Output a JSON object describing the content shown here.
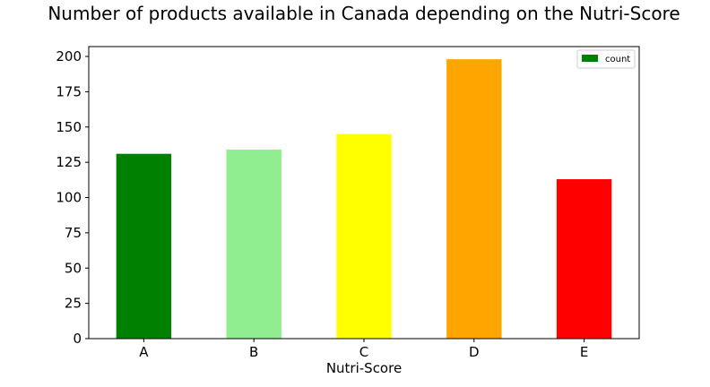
{
  "chart_data": {
    "type": "bar",
    "title": "Number of products available in Canada depending on the Nutri-Score",
    "xlabel": "Nutri-Score",
    "ylabel": "",
    "categories": [
      "A",
      "B",
      "C",
      "D",
      "E"
    ],
    "series": [
      {
        "name": "count",
        "values": [
          131,
          134,
          145,
          198,
          113
        ],
        "colors": [
          "#008000",
          "#90ee90",
          "#ffff00",
          "#ffa500",
          "#ff0000"
        ],
        "legend_color": "#008000"
      }
    ],
    "ylim": [
      0,
      207
    ],
    "yticks": [
      0,
      25,
      50,
      75,
      100,
      125,
      150,
      175,
      200
    ],
    "grid": false,
    "legend_position": "top-right"
  }
}
